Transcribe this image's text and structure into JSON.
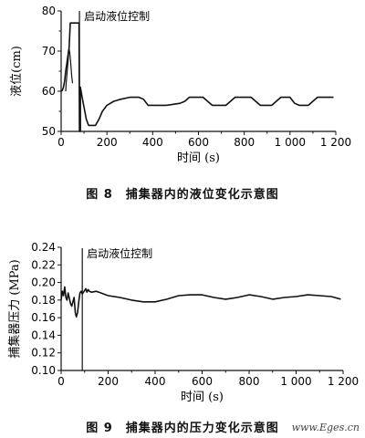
{
  "chart_data": [
    {
      "type": "line",
      "caption": "图 8　捕集器内的液位变化示意图",
      "xlabel": "时间 (s)",
      "ylabel": "液位(cm)",
      "xlim": [
        0,
        1200
      ],
      "ylim": [
        50,
        80
      ],
      "xticks": [
        0,
        200,
        400,
        600,
        800,
        "1 000",
        "1 200"
      ],
      "yticks": [
        50,
        60,
        70,
        80
      ],
      "annotation": {
        "text": "启动液位控制",
        "x": 80
      },
      "series": [
        {
          "points": [
            [
              0,
              60
            ],
            [
              5,
              60.2
            ],
            [
              10,
              61
            ],
            [
              15,
              62.5
            ],
            [
              20,
              65
            ],
            [
              25,
              67
            ],
            [
              30,
              69
            ],
            [
              35,
              71
            ],
            [
              40,
              77
            ],
            [
              78,
              77
            ],
            [
              80,
              50
            ],
            [
              84,
              50
            ],
            [
              84,
              61
            ],
            [
              90,
              59
            ],
            [
              100,
              56
            ],
            [
              110,
              53
            ],
            [
              120,
              51.5
            ],
            [
              150,
              51.5
            ],
            [
              165,
              53
            ],
            [
              180,
              55
            ],
            [
              200,
              56.5
            ],
            [
              230,
              57.5
            ],
            [
              260,
              58
            ],
            [
              300,
              58.5
            ],
            [
              340,
              58.5
            ],
            [
              360,
              58
            ],
            [
              380,
              56.5
            ],
            [
              400,
              56.5
            ],
            [
              430,
              56.5
            ],
            [
              460,
              56.5
            ],
            [
              520,
              57
            ],
            [
              540,
              57.5
            ],
            [
              560,
              58.5
            ],
            [
              620,
              58.5
            ],
            [
              640,
              57.5
            ],
            [
              660,
              56.5
            ],
            [
              720,
              56.5
            ],
            [
              740,
              57.5
            ],
            [
              760,
              58.5
            ],
            [
              830,
              58.5
            ],
            [
              850,
              57.5
            ],
            [
              870,
              56.5
            ],
            [
              920,
              56.5
            ],
            [
              940,
              57.5
            ],
            [
              960,
              58.5
            ],
            [
              1000,
              58.5
            ],
            [
              1020,
              57
            ],
            [
              1040,
              56.5
            ],
            [
              1080,
              56.5
            ],
            [
              1100,
              57.5
            ],
            [
              1120,
              58.5
            ],
            [
              1150,
              58.5
            ],
            [
              1190,
              58.5
            ]
          ]
        },
        {
          "points": [
            [
              20,
              60
            ],
            [
              22,
              62
            ],
            [
              25,
              64
            ],
            [
              28,
              66
            ],
            [
              31,
              68
            ],
            [
              33,
              70
            ],
            [
              35,
              70.5
            ],
            [
              38,
              69.5
            ],
            [
              42,
              67
            ],
            [
              46,
              64
            ],
            [
              50,
              62
            ]
          ]
        }
      ]
    },
    {
      "type": "line",
      "caption": "图 9　捕集器内的压力变化示意图",
      "xlabel": "时间 (s)",
      "ylabel": "捕集器压力 (MPa)",
      "xlim": [
        0,
        1200
      ],
      "ylim": [
        0.1,
        0.24
      ],
      "xticks": [
        0,
        200,
        400,
        600,
        800,
        "1 000",
        "1 200"
      ],
      "yticks": [
        "0.10",
        "0.12",
        "0.14",
        "0.16",
        "0.18",
        "0.20",
        "0.22",
        "0.24"
      ],
      "annotation": {
        "text": "启动液位控制",
        "x": 90
      },
      "series": [
        {
          "points": [
            [
              0,
              0.18
            ],
            [
              5,
              0.19
            ],
            [
              10,
              0.185
            ],
            [
              15,
              0.195
            ],
            [
              20,
              0.183
            ],
            [
              25,
              0.18
            ],
            [
              30,
              0.188
            ],
            [
              35,
              0.182
            ],
            [
              40,
              0.176
            ],
            [
              45,
              0.173
            ],
            [
              50,
              0.178
            ],
            [
              55,
              0.183
            ],
            [
              60,
              0.166
            ],
            [
              65,
              0.161
            ],
            [
              70,
              0.166
            ],
            [
              75,
              0.178
            ],
            [
              80,
              0.188
            ],
            [
              85,
              0.19
            ],
            [
              90,
              0.187
            ],
            [
              95,
              0.189
            ],
            [
              100,
              0.191
            ],
            [
              105,
              0.193
            ],
            [
              110,
              0.189
            ],
            [
              115,
              0.192
            ],
            [
              120,
              0.19
            ],
            [
              130,
              0.189
            ],
            [
              150,
              0.19
            ],
            [
              170,
              0.188
            ],
            [
              200,
              0.185
            ],
            [
              250,
              0.183
            ],
            [
              300,
              0.18
            ],
            [
              350,
              0.178
            ],
            [
              400,
              0.178
            ],
            [
              450,
              0.181
            ],
            [
              500,
              0.185
            ],
            [
              550,
              0.186
            ],
            [
              600,
              0.186
            ],
            [
              650,
              0.183
            ],
            [
              700,
              0.181
            ],
            [
              750,
              0.183
            ],
            [
              800,
              0.186
            ],
            [
              850,
              0.184
            ],
            [
              900,
              0.181
            ],
            [
              950,
              0.183
            ],
            [
              1000,
              0.184
            ],
            [
              1050,
              0.186
            ],
            [
              1100,
              0.185
            ],
            [
              1150,
              0.184
            ],
            [
              1190,
              0.181
            ]
          ]
        }
      ]
    }
  ],
  "watermark": "www.Eges.cn"
}
